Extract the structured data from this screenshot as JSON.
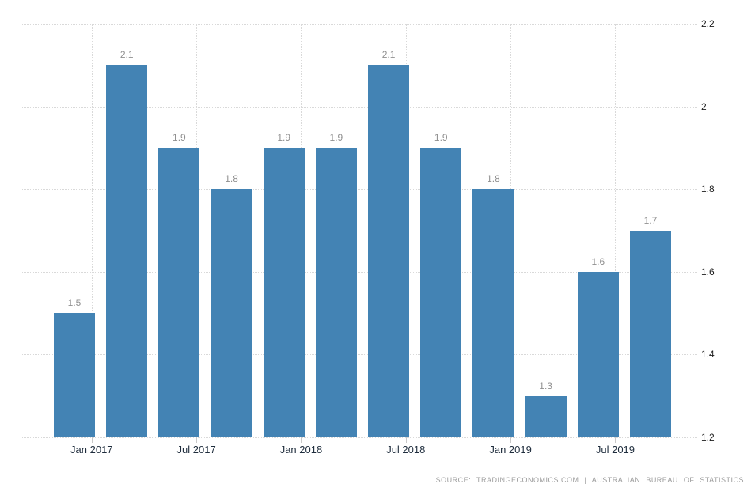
{
  "source_note": "SOURCE: TRADINGECONOMICS.COM | AUSTRALIAN BUREAU OF STATISTICS",
  "chart_data": {
    "type": "bar",
    "values": [
      1.5,
      2.1,
      1.9,
      1.8,
      1.9,
      1.9,
      2.1,
      1.9,
      1.8,
      1.3,
      1.6,
      1.7
    ],
    "bar_labels": [
      "1.5",
      "2.1",
      "1.9",
      "1.8",
      "1.9",
      "1.9",
      "2.1",
      "1.9",
      "1.8",
      "1.3",
      "1.6",
      "1.7"
    ],
    "x_tick_labels": [
      "Jan 2017",
      "Jul 2017",
      "Jan 2018",
      "Jul 2018",
      "Jan 2019",
      "Jul 2019"
    ],
    "y_ticks": [
      2.2,
      2.0,
      1.8,
      1.6,
      1.4,
      1.2
    ],
    "y_tick_labels": [
      "2.2",
      "2",
      "1.8",
      "1.6",
      "1.4",
      "1.2"
    ],
    "ylim": [
      1.2,
      2.2
    ],
    "title": "",
    "xlabel": "",
    "ylabel": "",
    "grid": "dotted",
    "y_axis_position": "right",
    "legend": "none",
    "bar_color": "#4383b4",
    "value_label_color": "#909090",
    "x_label_color": "#1f2d3d",
    "y_label_color": "#1a1a1a",
    "gridline_color": "#d9d9d9"
  }
}
